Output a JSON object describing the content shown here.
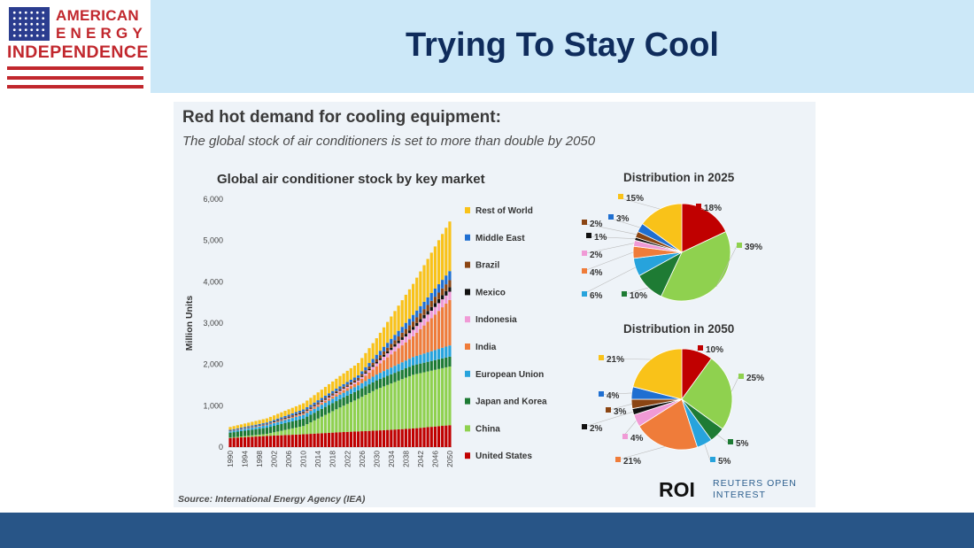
{
  "page": {
    "title": "Trying To Stay Cool",
    "logo": {
      "line1": "AMERICAN",
      "line2": "ENERGY",
      "line3": "INDEPENDENCE"
    }
  },
  "figure": {
    "headline": "Red hot demand for cooling equipment:",
    "subtitle": "The global stock of air conditioners is set to more than double by 2050",
    "source": "Source: International Energy Agency (IEA)",
    "brand": {
      "mark": "ROI",
      "text_line1": "REUTERS OPEN",
      "text_line2": "INTEREST"
    }
  },
  "colors": {
    "United States": "#c00000",
    "China": "#8fd14f",
    "Japan and Korea": "#1e7b34",
    "European Union": "#27a3dc",
    "India": "#ef7c3a",
    "Indonesia": "#f09ad6",
    "Mexico": "#111111",
    "Brazil": "#8b4513",
    "Middle East": "#1f6fd1",
    "Rest of World": "#f9c219"
  },
  "chart_data": [
    {
      "type": "bar",
      "stacked": true,
      "title": "Global air conditioner stock by key market",
      "xlabel": "",
      "ylabel": "Million Units",
      "ylim": [
        0,
        6000
      ],
      "yticks": [
        0,
        1000,
        2000,
        3000,
        4000,
        5000,
        6000
      ],
      "ytick_labels": [
        "0",
        "1,000",
        "2,000",
        "3,000",
        "4,000",
        "5,000",
        "6,000"
      ],
      "xtick_labels": [
        "1990",
        "1994",
        "1998",
        "2002",
        "2006",
        "2010",
        "2014",
        "2018",
        "2022",
        "2026",
        "2030",
        "2034",
        "2038",
        "2042",
        "2046",
        "2050"
      ],
      "legend_position": "right",
      "anchor_years": [
        1990,
        2000,
        2010,
        2020,
        2025,
        2030,
        2040,
        2050
      ],
      "series": [
        {
          "name": "United States",
          "values": [
            220,
            270,
            310,
            360,
            380,
            400,
            450,
            530
          ]
        },
        {
          "name": "China",
          "values": [
            10,
            50,
            200,
            600,
            790,
            1000,
            1300,
            1420
          ]
        },
        {
          "name": "Japan and Korea",
          "values": [
            120,
            150,
            180,
            200,
            205,
            215,
            230,
            240
          ]
        },
        {
          "name": "European Union",
          "values": [
            30,
            60,
            90,
            110,
            120,
            140,
            200,
            270
          ]
        },
        {
          "name": "India",
          "values": [
            5,
            10,
            30,
            60,
            80,
            200,
            500,
            1100
          ]
        },
        {
          "name": "Indonesia",
          "values": [
            2,
            5,
            10,
            30,
            40,
            70,
            160,
            200
          ]
        },
        {
          "name": "Mexico",
          "values": [
            5,
            10,
            20,
            20,
            20,
            40,
            70,
            110
          ]
        },
        {
          "name": "Brazil",
          "values": [
            5,
            10,
            20,
            30,
            40,
            70,
            130,
            170
          ]
        },
        {
          "name": "Middle East",
          "values": [
            20,
            30,
            50,
            60,
            60,
            100,
            160,
            220
          ]
        },
        {
          "name": "Rest of World",
          "values": [
            70,
            100,
            150,
            250,
            300,
            400,
            750,
            1200
          ]
        }
      ]
    },
    {
      "type": "pie",
      "title": "Distribution in 2025",
      "labels": [
        "United States",
        "China",
        "Japan and Korea",
        "European Union",
        "India",
        "Indonesia",
        "Mexico",
        "Brazil",
        "Middle East",
        "Rest of World"
      ],
      "values": [
        18,
        39,
        10,
        6,
        4,
        2,
        1,
        2,
        3,
        15
      ],
      "value_labels": [
        "18%",
        "39%",
        "10%",
        "6%",
        "4%",
        "2%",
        "1%",
        "2%",
        "3%",
        "15%"
      ]
    },
    {
      "type": "pie",
      "title": "Distribution in 2050",
      "labels": [
        "United States",
        "China",
        "Japan and Korea",
        "European Union",
        "India",
        "Indonesia",
        "Mexico",
        "Brazil",
        "Middle East",
        "Rest of World"
      ],
      "values": [
        10,
        25,
        5,
        5,
        21,
        4,
        2,
        3,
        4,
        21
      ],
      "value_labels": [
        "10%",
        "25%",
        "5%",
        "5%",
        "21%",
        "4%",
        "2%",
        "3%",
        "4%",
        "21%"
      ]
    }
  ]
}
